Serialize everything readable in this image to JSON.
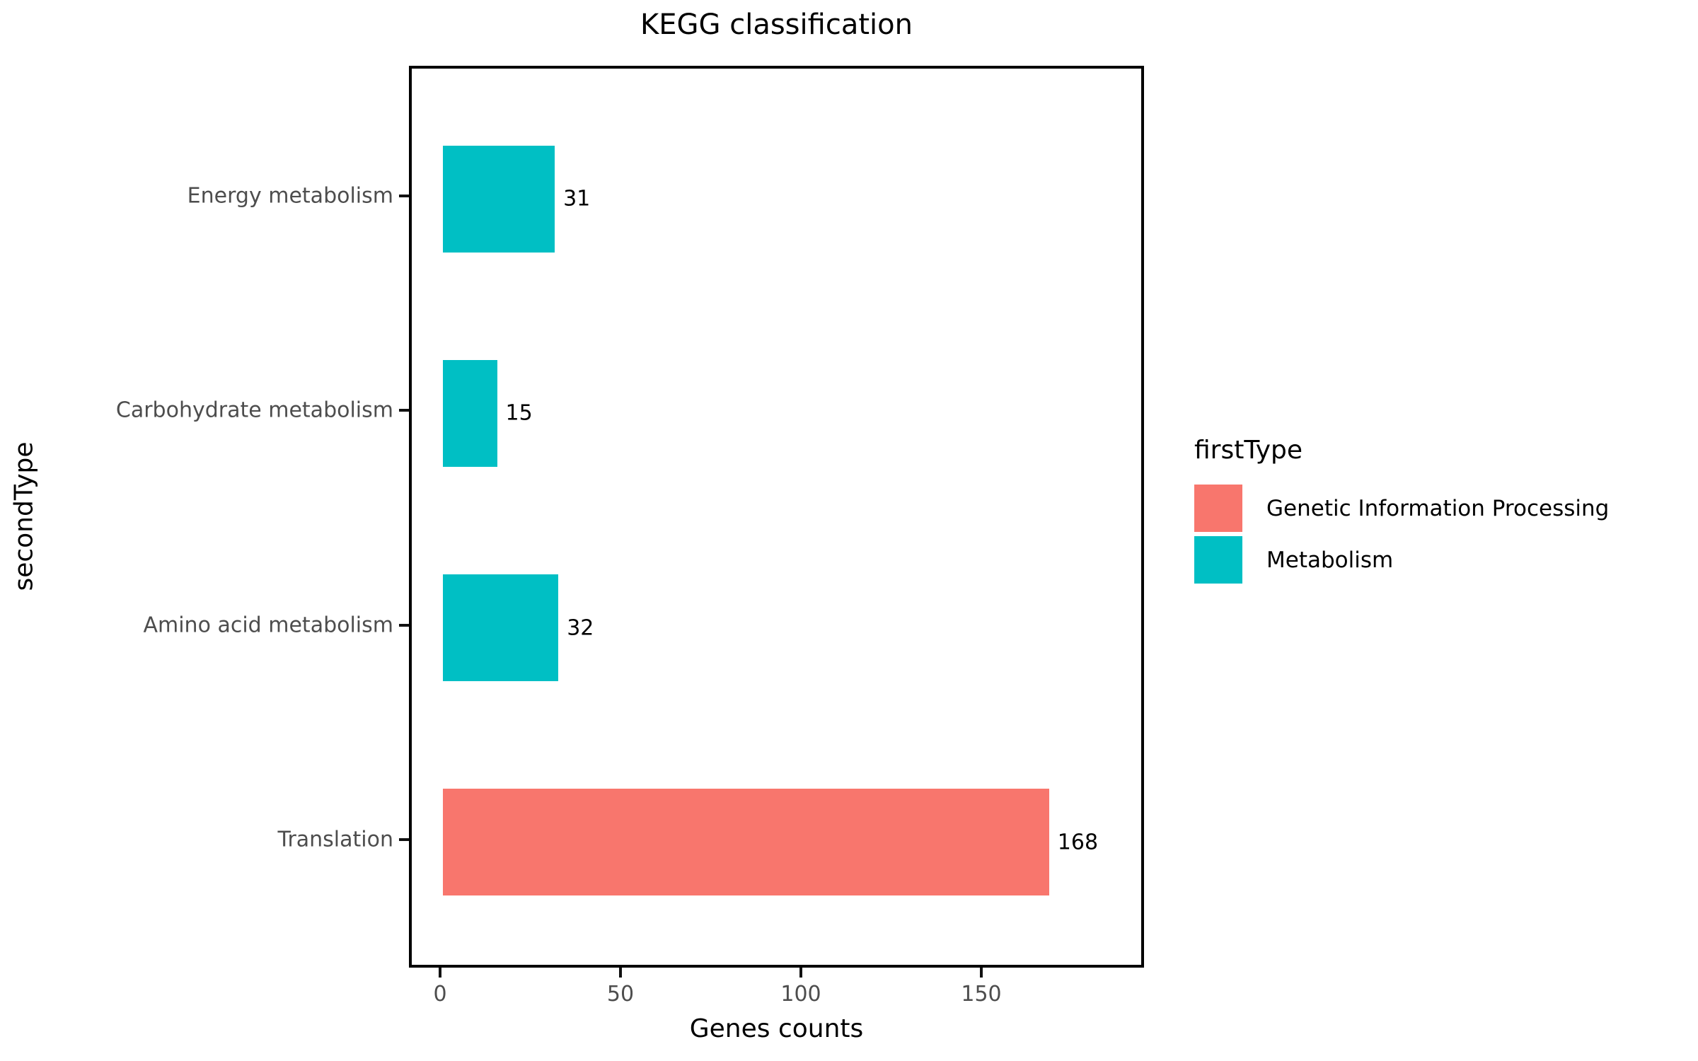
{
  "chart_data": {
    "type": "bar",
    "orientation": "horizontal",
    "title": "KEGG classification",
    "xlabel": "Genes counts",
    "ylabel": "secondType",
    "categories": [
      "Energy metabolism",
      "Carbohydrate metabolism",
      "Amino acid metabolism",
      "Translation"
    ],
    "values": [
      31,
      15,
      32,
      168
    ],
    "groups": [
      "Metabolism",
      "Metabolism",
      "Metabolism",
      "Genetic Information Processing"
    ],
    "bar_value_labels": [
      "31",
      "15",
      "32",
      "168"
    ],
    "x_ticks": [
      0,
      50,
      100,
      150
    ],
    "x_tick_labels": [
      "0",
      "50",
      "100",
      "150"
    ],
    "xlim": [
      0,
      195
    ],
    "grid": false,
    "legend": {
      "title": "firstType",
      "position": "right",
      "entries": [
        {
          "label": "Genetic Information Processing",
          "color": "#F8766D"
        },
        {
          "label": "Metabolism",
          "color": "#00BFC4"
        }
      ]
    },
    "colors": {
      "genetic_information_processing": "#F8766D",
      "metabolism": "#00BFC4",
      "axis_text": "#4d4d4d",
      "panel_border": "#000000"
    }
  }
}
